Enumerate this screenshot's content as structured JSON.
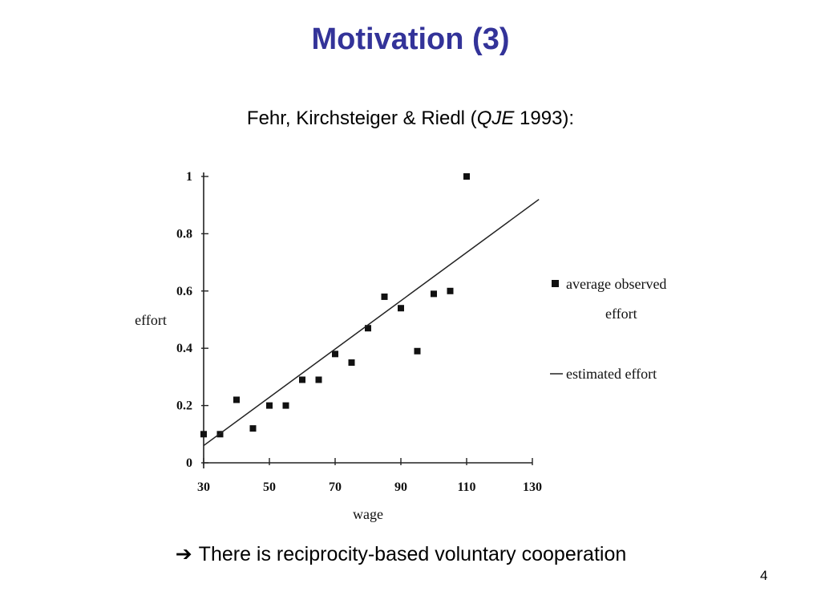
{
  "slide": {
    "title": "Motivation (3)",
    "citation_prefix": "Fehr, Kirchsteiger & Riedl (",
    "citation_journal": "QJE",
    "citation_suffix": " 1993):",
    "conclusion_arrow": "➔",
    "conclusion": "There is reciprocity-based voluntary cooperation",
    "page_number": "4"
  },
  "chart_data": {
    "type": "scatter",
    "title": "",
    "xlabel": "wage",
    "ylabel": "effort",
    "xlim": [
      30,
      130
    ],
    "ylim": [
      0,
      1
    ],
    "x_ticks": [
      30,
      50,
      70,
      90,
      110,
      130
    ],
    "x_tick_labels": [
      "30",
      "50",
      "70",
      "90",
      "110",
      "130"
    ],
    "y_ticks": [
      0,
      0.2,
      0.4,
      0.6,
      0.8,
      1
    ],
    "y_tick_labels": [
      "0",
      "0.2",
      "0.4",
      "0.6",
      "0.8",
      "1"
    ],
    "grid": false,
    "legend_position": "right",
    "series": [
      {
        "name": "average observed effort",
        "legend_lines": [
          "average observed",
          "effort"
        ],
        "kind": "points",
        "marker": "square",
        "x": [
          30,
          35,
          40,
          45,
          50,
          55,
          60,
          65,
          70,
          75,
          80,
          85,
          90,
          95,
          100,
          105,
          110
        ],
        "y": [
          0.1,
          0.1,
          0.22,
          0.12,
          0.2,
          0.2,
          0.29,
          0.29,
          0.38,
          0.35,
          0.47,
          0.58,
          0.54,
          0.39,
          0.59,
          0.6,
          1.0
        ]
      },
      {
        "name": "estimated effort",
        "legend_lines": [
          "estimated effort"
        ],
        "kind": "line",
        "x": [
          30,
          132
        ],
        "y": [
          0.06,
          0.92
        ]
      }
    ]
  }
}
